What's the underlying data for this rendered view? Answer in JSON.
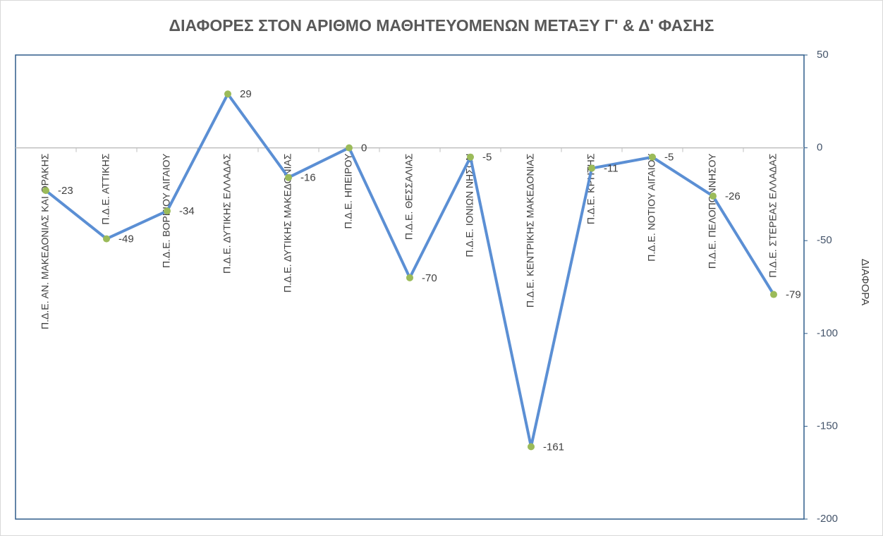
{
  "chart_data": {
    "type": "line",
    "title": "ΔΙΑΦΟΡΕΣ ΣΤΟΝ ΑΡΙΘΜΟ ΜΑΘΗΤΕΥΟΜΕΝΩΝ ΜΕΤΑΞΥ Γ' & Δ' ΦΑΣΗΣ",
    "y_axis_label": "ΔΙΑΦΟΡΑ",
    "y_axis_side": "right",
    "categories": [
      "Π.Δ.Ε. ΑΝ. ΜΑΚΕΔΟΝΙΑΣ ΚΑΙ ΘΡΑΚΗΣ",
      "Π.Δ.Ε. ΑΤΤΙΚΗΣ",
      "Π.Δ.Ε. ΒΟΡΕΙΟΥ ΑΙΓΑΙΟΥ",
      "Π.Δ.Ε. ΔΥΤΙΚΗΣ ΕΛΛΑΔΑΣ",
      "Π.Δ.Ε. ΔΥΤΙΚΗΣ ΜΑΚΕΔΟΝΙΑΣ",
      "Π.Δ.Ε. ΗΠΕΙΡΟΥ",
      "Π.Δ.Ε. ΘΕΣΣΑΛΙΑΣ",
      "Π.Δ.Ε. ΙΟΝΙΩΝ ΝΗΣΩΝ",
      "Π.Δ.Ε. ΚΕΝΤΡΙΚΗΣ ΜΑΚΕΔΟΝΙΑΣ",
      "Π.Δ.Ε. ΚΡΗΤΗΣ",
      "Π.Δ.Ε. ΝΟΤΙΟΥ ΑΙΓΑΙΟΥ",
      "Π.Δ.Ε. ΠΕΛΟΠΟΝΝΗΣΟΥ",
      "Π.Δ.Ε. ΣΤΕΡΕΑΣ ΕΛΛΑΔΑΣ"
    ],
    "series": [
      {
        "name": "ΔΙΑΦΟΡΑ",
        "color": "#5b8fd4",
        "marker_color": "#9bbb59",
        "values": [
          -23,
          -49,
          -34,
          29,
          -16,
          0,
          -70,
          -5,
          -161,
          -11,
          -5,
          -26,
          -79
        ]
      }
    ],
    "ylim": [
      -200,
      50
    ],
    "yticks": [
      -200,
      -150,
      -100,
      -50,
      0,
      50
    ]
  }
}
